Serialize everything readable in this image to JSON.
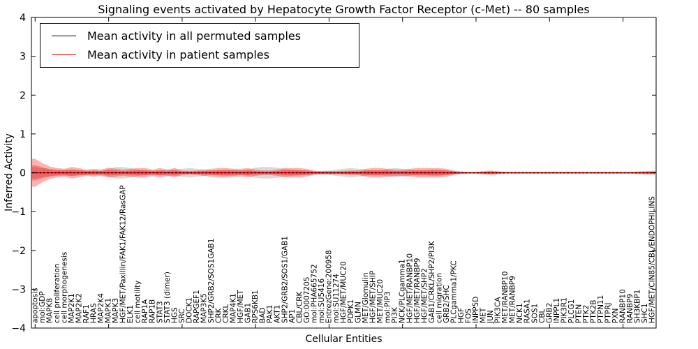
{
  "figure": {
    "title": "Signaling events activated by Hepatocyte Growth Factor Receptor (c-Met) -- 80 samples",
    "xlabel": "Cellular Entities",
    "ylabel": "Inferred Activity",
    "legend": [
      {
        "label": "Mean activity in all permuted samples",
        "color": "#000000"
      },
      {
        "label": "Mean activity in patient samples",
        "color": "#ff0000"
      }
    ]
  },
  "chart_data": {
    "type": "line",
    "title": "Signaling events activated by Hepatocyte Growth Factor Receptor (c-Met) -- 80 samples",
    "xlabel": "Cellular Entities",
    "ylabel": "Inferred Activity",
    "ylim": [
      -4,
      4
    ],
    "yticks": [
      -4,
      -3,
      -2,
      -1,
      0,
      1,
      2,
      3,
      4
    ],
    "grid": false,
    "legend_position": "upper left",
    "band_note": "shaded bands are +/- spread around each mean, in activity units",
    "colors": {
      "permuted_line": "#000000",
      "patient_line": "#ff0000",
      "patient_band": "rgba(255,0,0,0.30)",
      "permuted_band": "rgba(0,0,0,0.15)"
    },
    "categories": [
      "apoptosis",
      "mol:GDP",
      "MAPK8",
      "cell proliferation",
      "cell morphogenesis",
      "MAP2K1",
      "MAP2K2",
      "RAF1",
      "HRAS",
      "MAP2K4",
      "MAPK1",
      "MAPK3",
      "HGF/MET/Paxillin/FAK1/FAK12/RasGAP",
      "ELK1",
      "cell motility",
      "RAP1A",
      "RAP1B",
      "STAT3",
      "STAT3 (dimer)",
      "HGS",
      "SRC",
      "DOCK1",
      "RAPGEF1",
      "MAP3K5",
      "SHP2/GRB2/SOS1GAB1",
      "CRK",
      "CRKL",
      "MAP4K1",
      "HGF/MET",
      "GAB1",
      "RPS6KB1",
      "BAD",
      "PAK1",
      "AKT1",
      "SHP2/GRB2/SOS1/GAB1",
      "AP1",
      "CBL/CRK",
      "GO:0007205",
      "mol:PHA665752",
      "mol:SU5416",
      "EntrezGene:200958",
      "mol:SU11274",
      "HGF/MET/MUC20",
      "PDPK1",
      "GLMN",
      "MET/Glomulin",
      "HGF/MET/SHIP",
      "MET/MUC20",
      "mol:PIP3",
      "PI3K",
      "NCK/PLCgamma1",
      "HGF/MET/RANBP10",
      "HGF/MET/RANBP9",
      "HGF/MET/SHP2",
      "GAB1/CRKL/SHP2/PI3K",
      "cell migration",
      "GRB2/SHC",
      "PLCgamma1/PKC",
      "HGF",
      "FOS",
      "INPP5D",
      "MET",
      "JUN",
      "PIK3CA",
      "MET/RANBP10",
      "MET/RANBP9",
      "NCK1",
      "RASA1",
      "SOS1",
      "CBL",
      "GRB2",
      "INPPL1",
      "PIK3R1",
      "PLCG1",
      "PTEN",
      "PTK2",
      "PTK2B",
      "PTPN11",
      "PTPRJ",
      "PXN",
      "RANBP10",
      "RANBP9",
      "SH3KBP1",
      "SHC1",
      "HGF/MET/CIN85/CBL/ENDOPHILINS"
    ],
    "series": [
      {
        "name": "Mean activity in all permuted samples",
        "color": "#000000",
        "values": [
          0,
          0,
          0,
          0,
          0,
          0,
          0,
          0,
          0,
          0,
          0,
          0,
          0,
          0,
          0,
          0,
          0,
          0,
          0,
          0,
          0,
          0,
          0,
          0,
          0,
          0,
          0,
          0,
          0,
          0,
          0,
          0,
          0,
          0,
          0,
          0,
          0,
          0,
          0,
          0,
          0,
          0,
          0,
          0,
          0,
          0,
          0,
          0,
          0,
          0,
          0,
          0,
          0,
          0,
          0,
          0,
          0,
          0,
          0,
          0,
          0,
          0,
          0,
          0,
          0,
          0,
          0,
          0,
          0,
          0,
          0,
          0,
          0,
          0,
          0,
          0,
          0,
          0,
          0,
          0,
          0,
          0,
          0,
          0,
          0
        ],
        "band_halfwidth": [
          0.15,
          0.12,
          0.1,
          0.08,
          0.08,
          0.08,
          0.07,
          0.06,
          0.06,
          0.06,
          0.1,
          0.15,
          0.15,
          0.12,
          0.08,
          0.06,
          0.06,
          0.06,
          0.08,
          0.08,
          0.1,
          0.12,
          0.1,
          0.08,
          0.06,
          0.06,
          0.08,
          0.08,
          0.06,
          0.08,
          0.13,
          0.15,
          0.15,
          0.13,
          0.1,
          0.08,
          0.06,
          0.06,
          0.05,
          0.05,
          0.06,
          0.08,
          0.1,
          0.12,
          0.1,
          0.08,
          0.06,
          0.06,
          0.1,
          0.12,
          0.1,
          0.08,
          0.06,
          0.06,
          0.08,
          0.08,
          0.06,
          0.04,
          0.02,
          0.02,
          0.02,
          0.02,
          0.02,
          0.02,
          0.02,
          0.02,
          0.02,
          0.02,
          0.02,
          0.02,
          0.02,
          0.02,
          0.02,
          0.02,
          0.02,
          0.02,
          0.02,
          0.02,
          0.02,
          0.02,
          0.02,
          0.02,
          0.02,
          0.02,
          0.02
        ]
      },
      {
        "name": "Mean activity in patient samples",
        "color": "#ff0000",
        "values": [
          0,
          0,
          0,
          0,
          0,
          0,
          0,
          0,
          0,
          0,
          0,
          0,
          0,
          0,
          0,
          0,
          0,
          0,
          0,
          0,
          0,
          0,
          0,
          0,
          0,
          0,
          0,
          0,
          0,
          0,
          0,
          0,
          0,
          0,
          0,
          0,
          0,
          0,
          0,
          0,
          0,
          0,
          0,
          0,
          0,
          0,
          0,
          0,
          0,
          0,
          0,
          0,
          0,
          0,
          0,
          0,
          0,
          0,
          0,
          0,
          0,
          0,
          0,
          0,
          0,
          0,
          0,
          0,
          0,
          0,
          0,
          0,
          0,
          0,
          0,
          0,
          0,
          0,
          0,
          0,
          0,
          0,
          0,
          0,
          0
        ],
        "band_halfwidth": [
          0.36,
          0.25,
          0.16,
          0.12,
          0.1,
          0.15,
          0.12,
          0.08,
          0.1,
          0.08,
          0.13,
          0.1,
          0.08,
          0.1,
          0.12,
          0.12,
          0.08,
          0.12,
          0.08,
          0.12,
          0.06,
          0.05,
          0.06,
          0.08,
          0.1,
          0.12,
          0.12,
          0.1,
          0.1,
          0.12,
          0.08,
          0.06,
          0.06,
          0.08,
          0.12,
          0.12,
          0.12,
          0.1,
          0.05,
          0.04,
          0.04,
          0.04,
          0.05,
          0.06,
          0.06,
          0.1,
          0.12,
          0.12,
          0.1,
          0.08,
          0.08,
          0.1,
          0.12,
          0.12,
          0.12,
          0.12,
          0.1,
          0.06,
          0.03,
          0.02,
          0.02,
          0.04,
          0.06,
          0.04,
          0.02,
          0.02,
          0.02,
          0.02,
          0.02,
          0.02,
          0.02,
          0.02,
          0.02,
          0.02,
          0.02,
          0.02,
          0.02,
          0.02,
          0.02,
          0.02,
          0.02,
          0.02,
          0.03,
          0.04,
          0.05
        ]
      }
    ]
  }
}
